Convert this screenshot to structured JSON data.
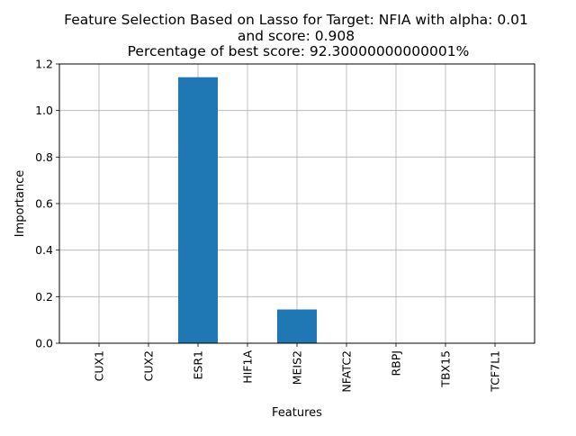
{
  "chart_data": {
    "type": "bar",
    "title_lines": [
      "Feature Selection Based on Lasso for Target: NFIA with alpha: 0.01",
      "and score: 0.908",
      " Percentage of best score: 92.30000000000001%"
    ],
    "xlabel": "Features",
    "ylabel": "Importance",
    "categories": [
      "CUX1",
      "CUX2",
      "ESR1",
      "HIF1A",
      "MEIS2",
      "NFATC2",
      "RBPJ",
      "TBX15",
      "TCF7L1"
    ],
    "values": [
      0.0,
      0.0,
      1.143,
      0.0,
      0.145,
      0.0,
      0.0,
      0.0,
      0.0
    ],
    "ylim": [
      0,
      1.2
    ],
    "yticks": [
      "0.0",
      "0.2",
      "0.4",
      "0.6",
      "0.8",
      "1.0",
      "1.2"
    ],
    "grid": true,
    "bar_color": "#1f77b4"
  }
}
